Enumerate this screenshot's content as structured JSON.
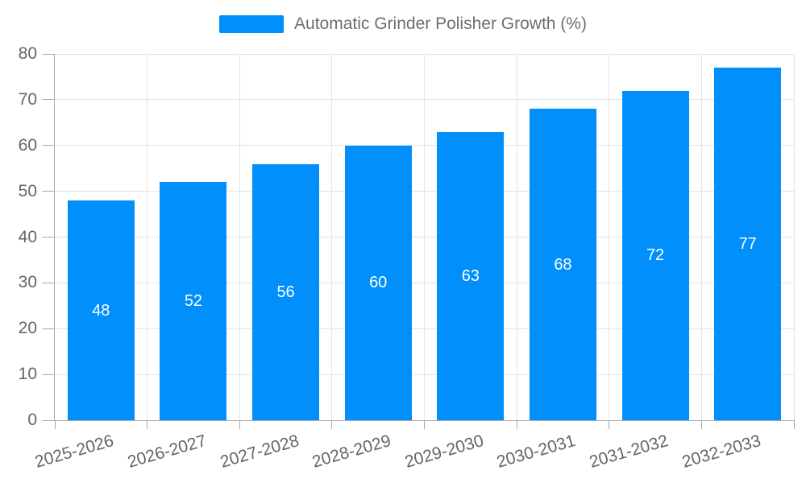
{
  "chart_data": {
    "type": "bar",
    "title": "",
    "legend_position": "top-center",
    "grid": true,
    "categories": [
      "2025-2026",
      "2026-2027",
      "2027-2028",
      "2028-2029",
      "2029-2030",
      "2030-2031",
      "2031-2032",
      "2032-2033"
    ],
    "series": [
      {
        "name": "Automatic Grinder Polisher Growth (%)",
        "values": [
          48,
          52,
          56,
          60,
          63,
          68,
          72,
          77
        ]
      }
    ],
    "bar_value_labels": [
      "48",
      "52",
      "56",
      "60",
      "63",
      "68",
      "72",
      "77"
    ],
    "xlabel": "",
    "ylabel": "",
    "ylim": [
      0,
      80
    ],
    "ytick_step": 10,
    "ytick_labels": [
      "0",
      "10",
      "20",
      "30",
      "40",
      "50",
      "60",
      "70",
      "80"
    ],
    "colors": {
      "bar": "#008FFB",
      "bar_label": "#FFFFFF",
      "axis_text": "#666666",
      "legend_text": "#6E6E6E",
      "grid_line": "#E4E4E4",
      "axis_line": "#ABABAB",
      "background": "#FFFFFF"
    }
  }
}
